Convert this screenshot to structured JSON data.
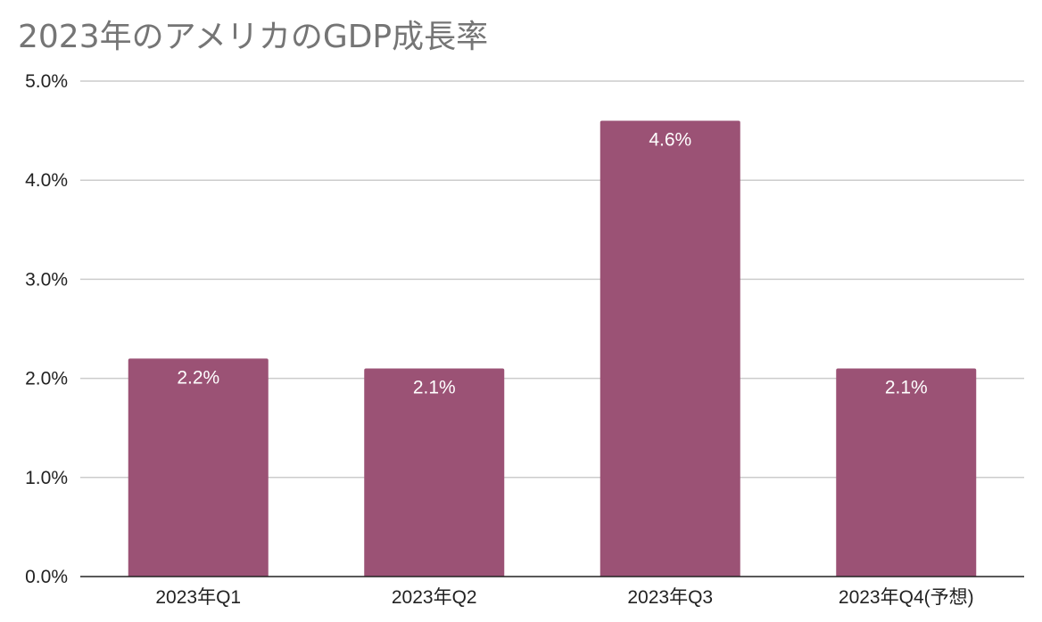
{
  "chart_data": {
    "type": "bar",
    "title": "2023年のアメリカのGDP成長率",
    "xlabel": "",
    "ylabel": "",
    "categories": [
      "2023年Q1",
      "2023年Q2",
      "2023年Q3",
      "2023年Q4(予想)"
    ],
    "values": [
      2.2,
      2.1,
      4.6,
      2.1
    ],
    "data_labels": [
      "2.2%",
      "2.1%",
      "4.6%",
      "2.1%"
    ],
    "yticks": [
      0,
      1,
      2,
      3,
      4,
      5
    ],
    "ytick_labels": [
      "0.0%",
      "1.0%",
      "2.0%",
      "3.0%",
      "4.0%",
      "5.0%"
    ],
    "ylim": [
      0,
      5
    ],
    "grid": true,
    "legend": "none",
    "bar_color": "#9b5275",
    "grid_color": "#cccccc",
    "axis_color": "#222222"
  }
}
